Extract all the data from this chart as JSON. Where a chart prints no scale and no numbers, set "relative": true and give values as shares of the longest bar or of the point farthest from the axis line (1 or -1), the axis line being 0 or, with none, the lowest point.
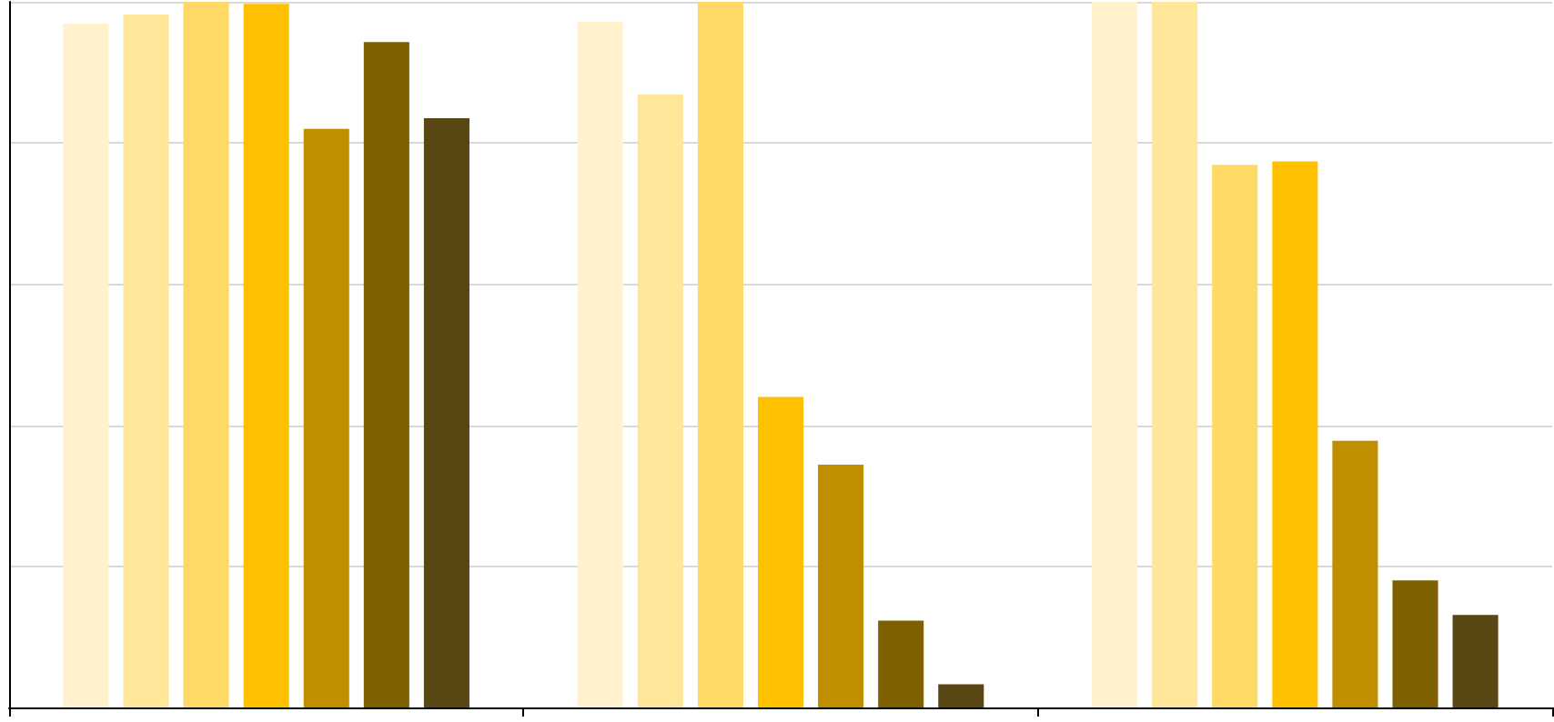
{
  "chart_data": {
    "type": "bar",
    "relative": true,
    "grid": "y",
    "categories": [
      null,
      null,
      null
    ],
    "series": [
      {
        "color": "#fff2cc",
        "values": [
          0.969,
          0.972,
          1
        ]
      },
      {
        "color": "#ffe699",
        "values": [
          0.982,
          0.869,
          1
        ]
      },
      {
        "color": "#ffd966",
        "values": [
          1,
          1,
          0.769
        ]
      },
      {
        "color": "#ffc000",
        "values": [
          0.997,
          0.44,
          0.774
        ]
      },
      {
        "color": "#bf8f00",
        "values": [
          0.82,
          0.344,
          0.378
        ]
      },
      {
        "color": "#7f6000",
        "values": [
          0.943,
          0.123,
          0.18
        ]
      },
      {
        "color": "#584712",
        "values": [
          0.835,
          0.033,
          0.131
        ]
      }
    ]
  }
}
